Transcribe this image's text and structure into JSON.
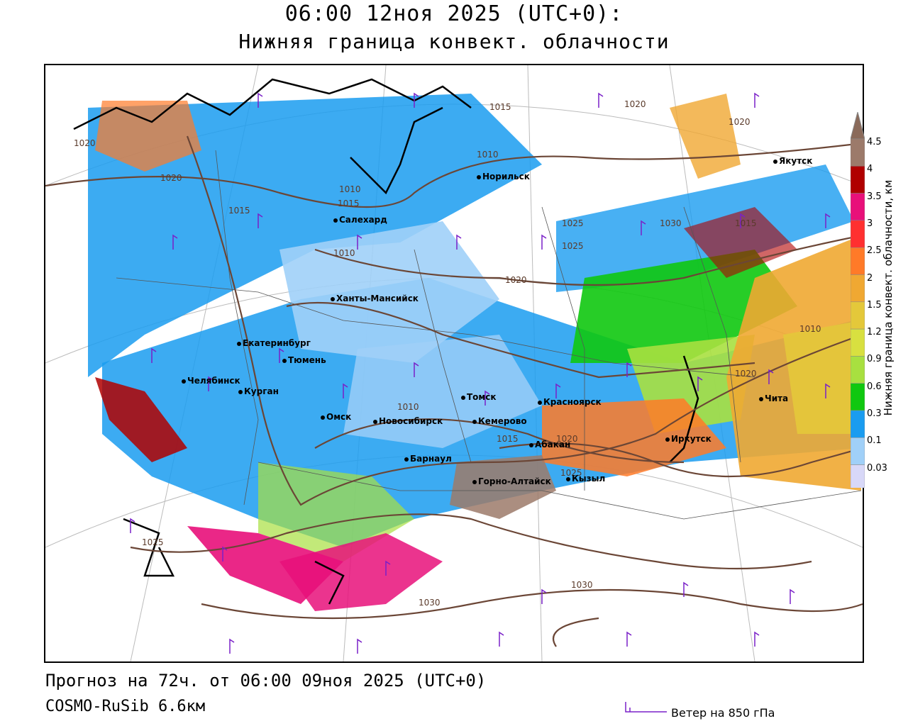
{
  "title": {
    "line1": "06:00 12ноя 2025 (UTC+0):",
    "line2": "Нижняя граница конвект. облачности"
  },
  "footer": {
    "forecast": "Прогноз на 72ч. от 06:00 09ноя 2025 (UTC+0)",
    "model": "COSMO-RuSib 6.6км",
    "wind_legend": "Ветер на 850 гПа"
  },
  "colorbar": {
    "title": "Нижняя граница конвект. облачности, км",
    "levels": [
      "4.5",
      "4",
      "3.5",
      "3",
      "2.5",
      "2",
      "1.5",
      "1.2",
      "0.9",
      "0.6",
      "0.3",
      "0.1",
      "0.03"
    ],
    "colors": [
      "#9c7a6a",
      "#b00000",
      "#e8107a",
      "#ff3030",
      "#ff7a28",
      "#f0a832",
      "#e4c83a",
      "#d8e040",
      "#a8e040",
      "#10c810",
      "#1a9cf0",
      "#a0d0f8",
      "#d8d8f8"
    ]
  },
  "cities": [
    {
      "name": "Норильск"
    },
    {
      "name": "Якутск"
    },
    {
      "name": "Салехард"
    },
    {
      "name": "Ханты-Мансийск"
    },
    {
      "name": "Екатеринбург"
    },
    {
      "name": "Тюмень"
    },
    {
      "name": "Челябинск"
    },
    {
      "name": "Курган"
    },
    {
      "name": "Омск"
    },
    {
      "name": "Новосибирск"
    },
    {
      "name": "Томск"
    },
    {
      "name": "Кемерово"
    },
    {
      "name": "Красноярск"
    },
    {
      "name": "Барнаул"
    },
    {
      "name": "Абакан"
    },
    {
      "name": "Горно-Алтайск"
    },
    {
      "name": "Кызыл"
    },
    {
      "name": "Иркутск"
    },
    {
      "name": "Чита"
    }
  ],
  "isobars": [
    "1015",
    "1020",
    "1020",
    "1020",
    "1015",
    "1015",
    "1025",
    "1025",
    "1030",
    "1015",
    "1010",
    "1010",
    "1020",
    "1010",
    "1010",
    "1020",
    "1015",
    "1020",
    "1025",
    "1025",
    "1030",
    "1030",
    "1020",
    "1010"
  ]
}
